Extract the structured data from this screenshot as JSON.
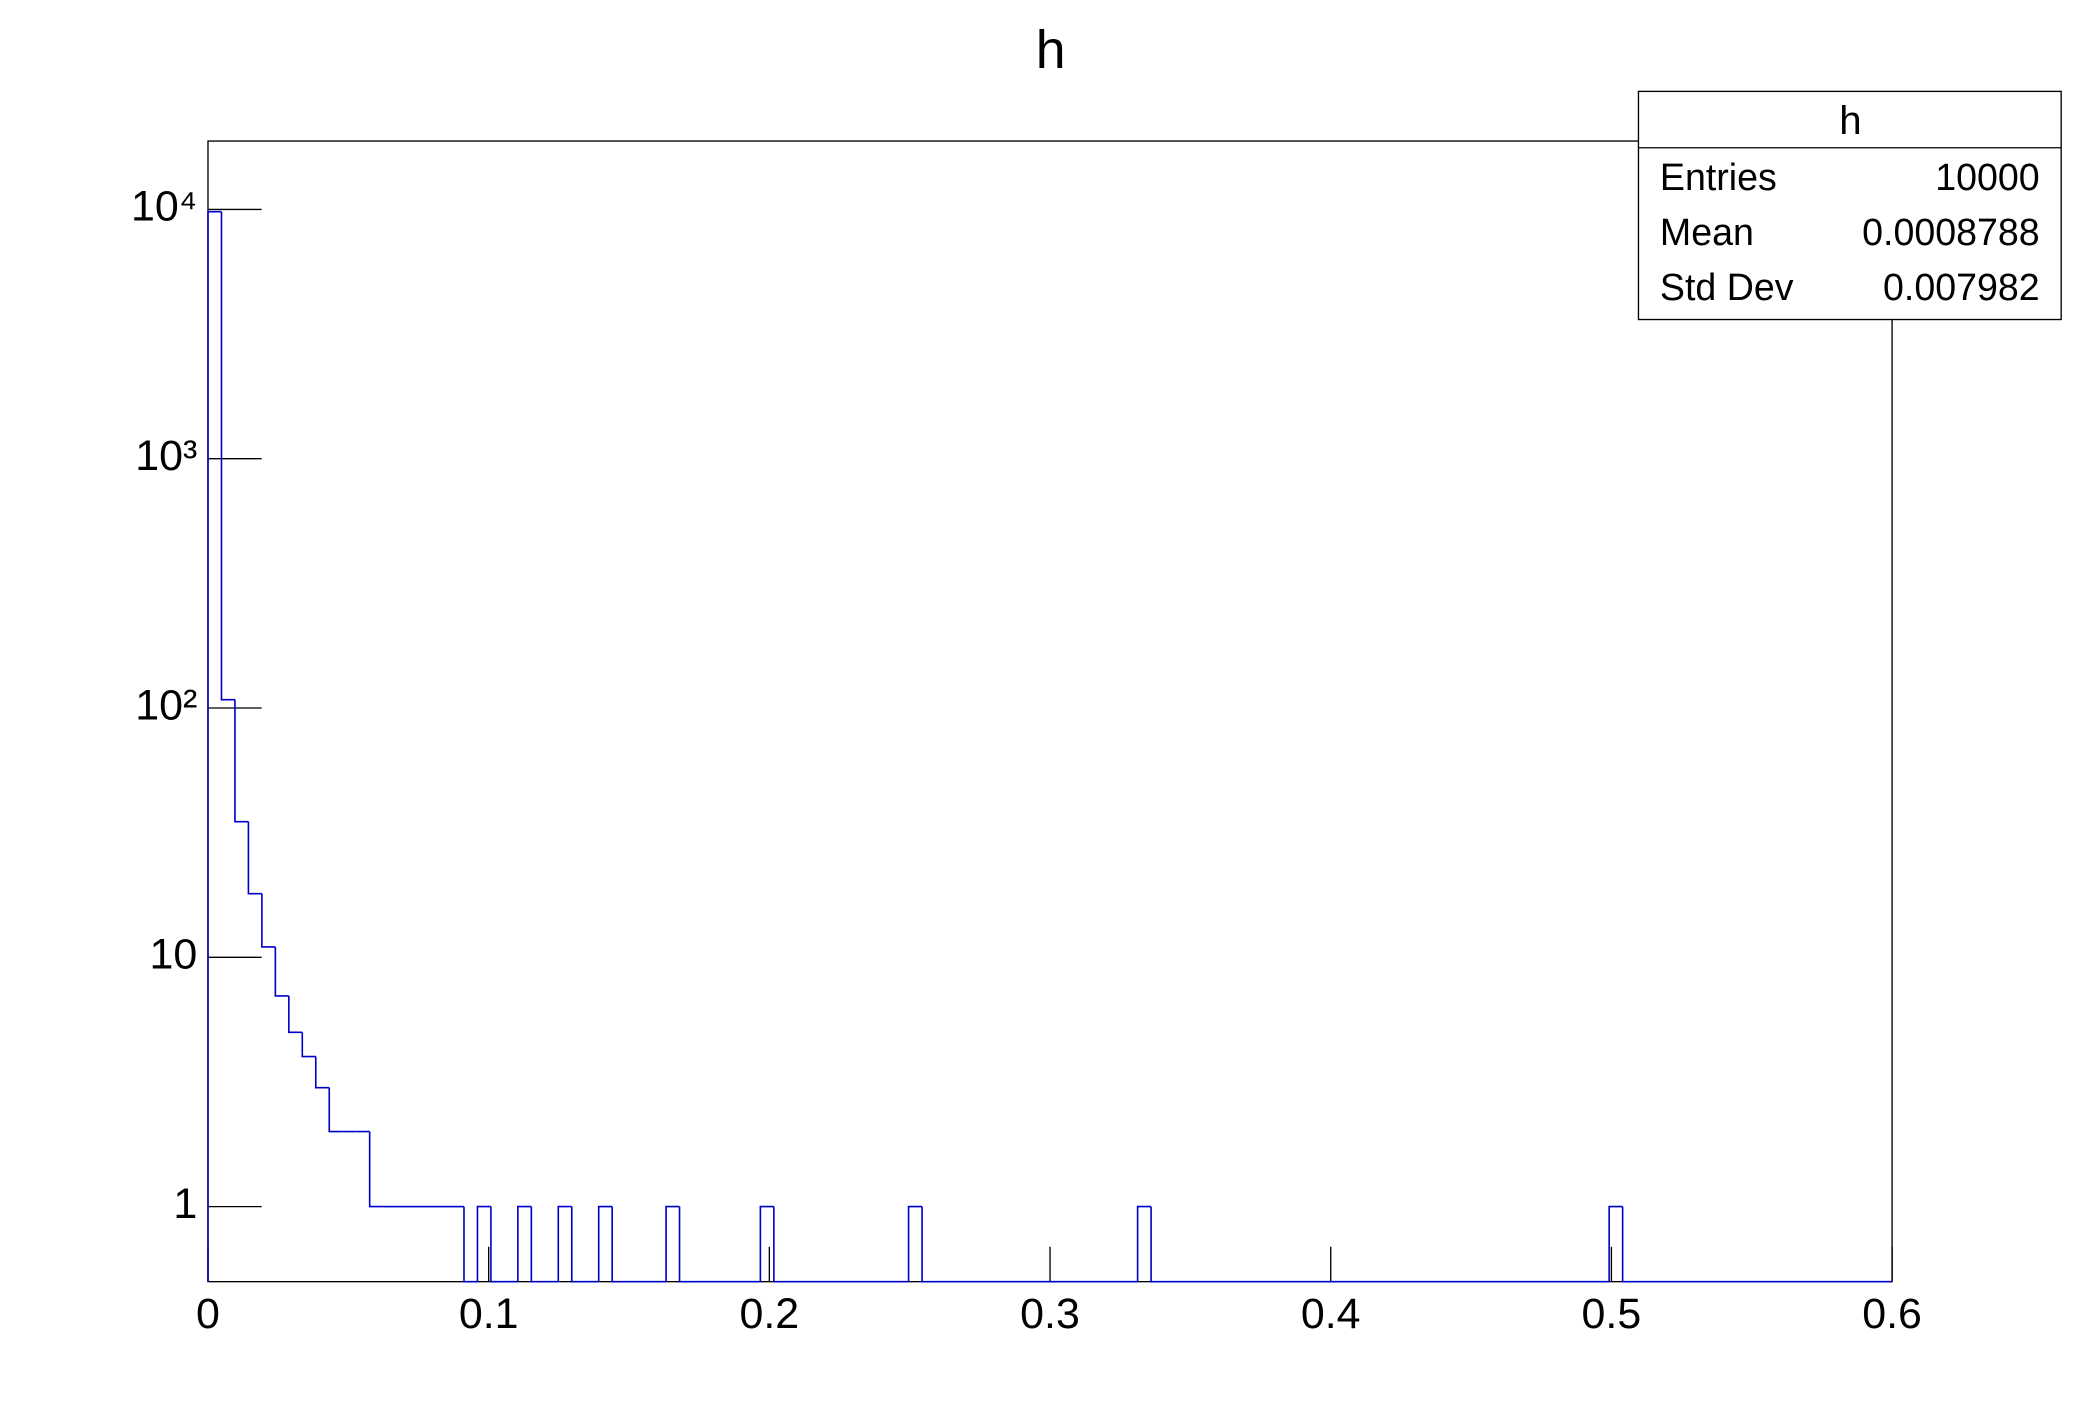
{
  "chart_data": {
    "type": "histogram",
    "title": "h",
    "bins": [
      0,
      0.0048,
      0.0096,
      0.0144,
      0.0192,
      0.024,
      0.0288,
      0.0336,
      0.0384,
      0.0432,
      0.048,
      0.0528,
      0.0576,
      0.0624,
      0.0672,
      0.072,
      0.0768,
      0.0816,
      0.0864,
      0.0912,
      0.096,
      0.1008,
      0.1056,
      0.1104,
      0.1152,
      0.12,
      0.1248,
      0.1296,
      0.1344,
      0.1392,
      0.144,
      0.1488,
      0.1536,
      0.1584,
      0.1632,
      0.168,
      0.1728,
      0.1776,
      0.1824,
      0.1872,
      0.192,
      0.1968,
      0.2016,
      0.2064,
      0.2112,
      0.216,
      0.2208,
      0.2256,
      0.2304,
      0.2352,
      0.24,
      0.2448,
      0.2496,
      0.2544,
      0.2592,
      0.264,
      0.2688,
      0.2736,
      0.2784,
      0.2832,
      0.288,
      0.2928,
      0.2976,
      0.3024,
      0.3072,
      0.312,
      0.3168,
      0.3216,
      0.3264,
      0.3312,
      0.336,
      0.3408,
      0.3456,
      0.3504,
      0.3552,
      0.36,
      0.3648,
      0.3696,
      0.3744,
      0.3792,
      0.384,
      0.3888,
      0.3936,
      0.3984,
      0.4032,
      0.408,
      0.4128,
      0.4176,
      0.4224,
      0.4272,
      0.432,
      0.4368,
      0.4416,
      0.4464,
      0.4512,
      0.456,
      0.4608,
      0.4656,
      0.4704,
      0.4752,
      0.48,
      0.4848,
      0.4896,
      0.4944,
      0.4992,
      0.504,
      0.5088,
      0.5136,
      0.5184,
      0.5232,
      0.528,
      0.5328,
      0.5376,
      0.5424,
      0.5472,
      0.552,
      0.5568,
      0.5616,
      0.5664,
      0.5712,
      0.576,
      0.5808,
      0.5856,
      0.5904,
      0.5952,
      0.6
    ],
    "values": [
      9787,
      108,
      35,
      18,
      11,
      7,
      5,
      4,
      3,
      2,
      2,
      2,
      1,
      1,
      1,
      1,
      1,
      1,
      1,
      0,
      1,
      0,
      0,
      1,
      0,
      0,
      1,
      0,
      0,
      1,
      0,
      0,
      0,
      0,
      1,
      0,
      0,
      0,
      0,
      0,
      0,
      1,
      0,
      0,
      0,
      0,
      0,
      0,
      0,
      0,
      0,
      0,
      1,
      0,
      0,
      0,
      0,
      0,
      0,
      0,
      0,
      0,
      0,
      0,
      0,
      0,
      0,
      0,
      0,
      1,
      0,
      0,
      0,
      0,
      0,
      0,
      0,
      0,
      0,
      0,
      0,
      0,
      0,
      0,
      0,
      0,
      0,
      0,
      0,
      0,
      0,
      0,
      0,
      0,
      0,
      0,
      0,
      0,
      0,
      0,
      0,
      0,
      0,
      0,
      1,
      0,
      0,
      0,
      0,
      0,
      0,
      0,
      0,
      0,
      0,
      0,
      0,
      0,
      0,
      0,
      0,
      0,
      0,
      0,
      0
    ],
    "color": "#0000cc",
    "xlim": [
      0,
      0.6
    ],
    "xticks": [
      0,
      0.1,
      0.2,
      0.3,
      0.4,
      0.5,
      0.6
    ],
    "ylim": [
      0.5,
      18800
    ],
    "ylog": true,
    "yticks": [
      1,
      10,
      {
        "value": 100,
        "label": "10²"
      },
      {
        "value": 1000,
        "label": "10³"
      },
      {
        "value": 10000,
        "label": "10⁴"
      }
    ],
    "stats": {
      "title": "h",
      "rows": [
        [
          "Entries",
          10000
        ],
        [
          "Mean",
          0.0008788
        ],
        [
          "Std Dev",
          0.007982
        ]
      ]
    }
  }
}
